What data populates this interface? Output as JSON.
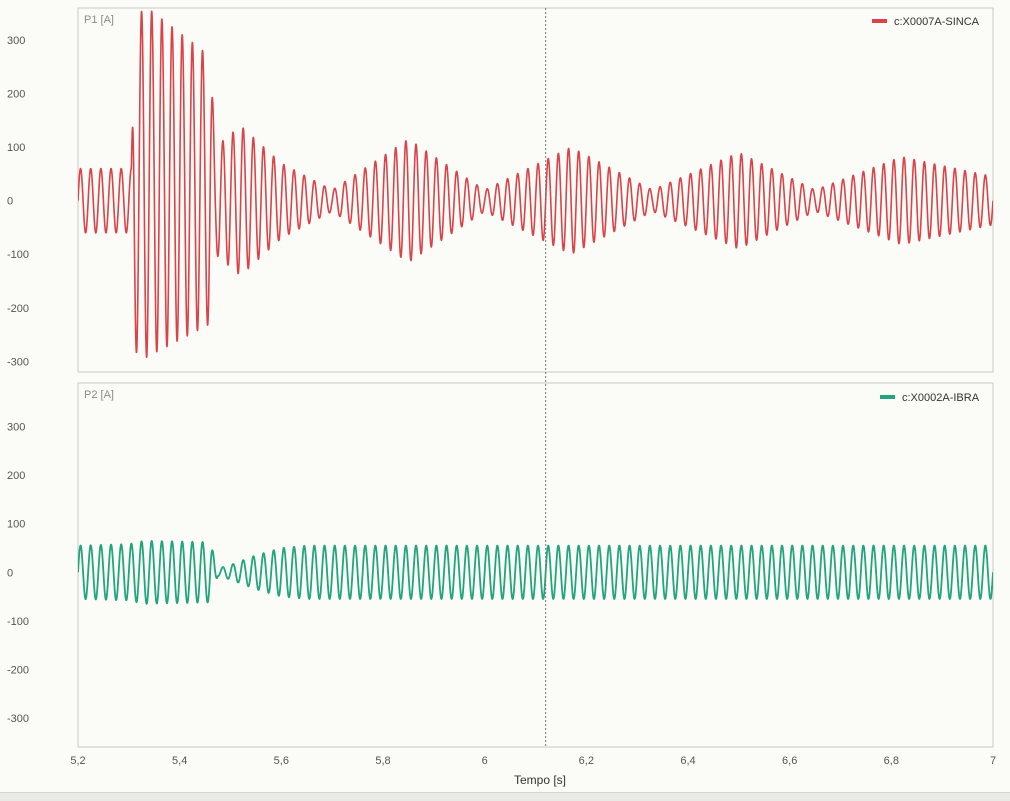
{
  "chart_data": {
    "type": "line",
    "xlabel": "Tempo [s]",
    "xlim": [
      5.2,
      7.0
    ],
    "x_ticks": [
      "5,2",
      "5,4",
      "5,6",
      "5,8",
      "6",
      "6,2",
      "6,4",
      "6,6",
      "6,8",
      "7"
    ],
    "x_tick_values": [
      5.2,
      5.4,
      5.6,
      5.8,
      6.0,
      6.2,
      6.4,
      6.6,
      6.8,
      7.0
    ],
    "cursor_x": 6.12,
    "grid": false,
    "legend": "top-right",
    "panels": [
      {
        "title": "P1 [A]",
        "ylim": [
          -320,
          360
        ],
        "y_ticks": [
          "300",
          "200",
          "100",
          "0",
          "-100",
          "-200",
          "-300"
        ],
        "y_tick_values": [
          300,
          200,
          100,
          0,
          -100,
          -200,
          -300
        ],
        "series": [
          {
            "name": "c:X0007A-SINCA",
            "color": "#d9434a",
            "waveform": "sinusoid",
            "frequency_hz": 50,
            "envelope_t": [
              5.2,
              5.305,
              5.31,
              5.33,
              5.46,
              5.47,
              5.52,
              5.6,
              5.7,
              5.85,
              6.0,
              6.17,
              6.33,
              6.5,
              6.65,
              6.82,
              7.0
            ],
            "envelope_amp": [
              60,
              60,
              300,
              330,
              250,
              100,
              140,
              70,
              20,
              115,
              20,
              100,
              20,
              90,
              20,
              82,
              45
            ],
            "envelope_offset": [
              0,
              0,
              20,
              35,
              20,
              0,
              0,
              0,
              0,
              0,
              0,
              0,
              0,
              0,
              0,
              0,
              0
            ]
          }
        ]
      },
      {
        "title": "P2 [A]",
        "ylim": [
          -360,
          390
        ],
        "y_ticks": [
          "300",
          "200",
          "100",
          "0",
          "-100",
          "-200",
          "-300"
        ],
        "y_tick_values": [
          300,
          200,
          100,
          0,
          -100,
          -200,
          -300
        ],
        "series": [
          {
            "name": "c:X0002A-IBRA",
            "color": "#22a57e",
            "waveform": "sinusoid",
            "frequency_hz": 50,
            "envelope_t": [
              5.2,
              5.3,
              5.33,
              5.46,
              5.475,
              5.5,
              5.55,
              5.6,
              5.65,
              7.0
            ],
            "envelope_amp": [
              55,
              58,
              65,
              62,
              8,
              15,
              35,
              50,
              55,
              55
            ],
            "envelope_offset": [
              0,
              0,
              0,
              0,
              0,
              0,
              0,
              0,
              0,
              0
            ]
          }
        ]
      }
    ]
  }
}
